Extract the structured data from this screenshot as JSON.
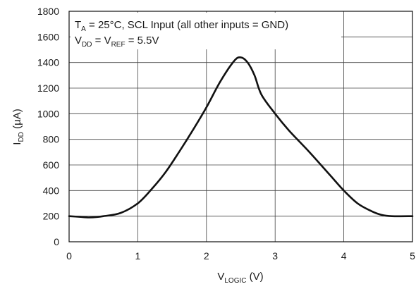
{
  "chart_data": {
    "type": "line",
    "title": "",
    "annotation_line1": {
      "pre": "T",
      "sub": "A",
      "post": " = 25°C, SCL Input (all other inputs = GND)"
    },
    "annotation_line2": {
      "a": "V",
      "a_sub": "DD",
      "b": " = V",
      "b_sub": "REF",
      "c": " = 5.5V"
    },
    "xlabel": {
      "main": "V",
      "sub": "LOGIC",
      "unit": " (V)"
    },
    "ylabel": {
      "main": "I",
      "sub": "DD",
      "unit": " (µA)"
    },
    "xlim": [
      0,
      5
    ],
    "ylim": [
      0,
      1800
    ],
    "x_ticks": [
      0,
      1,
      2,
      3,
      4,
      5
    ],
    "y_ticks": [
      0,
      200,
      400,
      600,
      800,
      1000,
      1200,
      1400,
      1600,
      1800
    ],
    "grid": true,
    "series": [
      {
        "color": "#111111",
        "x": [
          0,
          0.15,
          0.3,
          0.5,
          0.75,
          1.0,
          1.2,
          1.4,
          1.6,
          1.8,
          2.0,
          2.2,
          2.4,
          2.5,
          2.6,
          2.7,
          2.8,
          3.0,
          3.2,
          3.5,
          3.8,
          4.0,
          4.2,
          4.4,
          4.55,
          4.7,
          5.0
        ],
        "y": [
          200,
          195,
          190,
          200,
          225,
          300,
          410,
          540,
          700,
          870,
          1050,
          1250,
          1410,
          1440,
          1400,
          1300,
          1150,
          1000,
          870,
          700,
          520,
          400,
          300,
          240,
          210,
          200,
          200
        ]
      }
    ]
  }
}
